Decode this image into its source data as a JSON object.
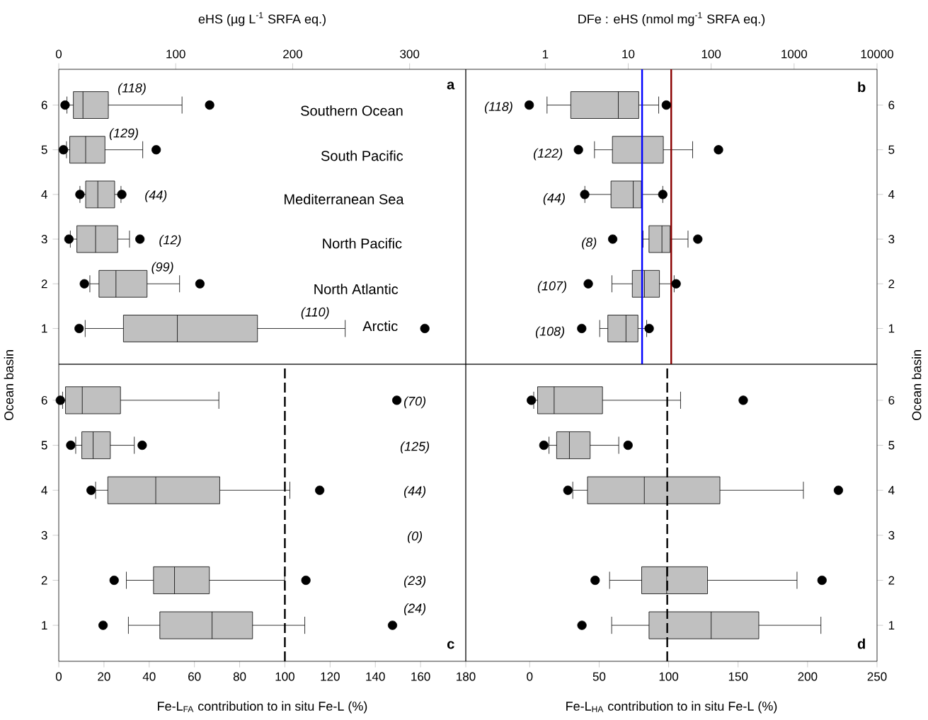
{
  "chart_data": [
    {
      "type": "box",
      "orientation": "horizontal",
      "xlabel": "eHS (µg L$^{-1}$ SRFA eq.)",
      "xlim": [
        0,
        348
      ],
      "xticks": [
        0,
        100,
        200,
        300
      ],
      "categories": [
        "6",
        "5",
        "4",
        "3",
        "2",
        "1"
      ],
      "series": [
        {
          "color": "#c0c0c0",
          "marker": "circle",
          "boxes": [
            {
              "low": 7,
              "q1": 12.5,
              "median": 20.7,
              "q3": 42.4,
              "high": 105.4,
              "outliers": [
                5.4,
                129
              ]
            },
            {
              "low": 6.6,
              "q1": 9.4,
              "median": 23,
              "q3": 39.5,
              "high": 71.8,
              "outliers": [
                4,
                83.3
              ]
            },
            {
              "low": 18.1,
              "q1": 23,
              "median": 33.4,
              "q3": 47.8,
              "high": 53.2,
              "outliers": [
                18.1,
                53.9
              ]
            },
            {
              "low": 9.9,
              "q1": 15.5,
              "median": 31.5,
              "q3": 50.4,
              "high": 60.5,
              "outliers": [
                8.7,
                69.4
              ]
            },
            {
              "low": 26.6,
              "q1": 34.4,
              "median": 48.9,
              "q3": 75.5,
              "high": 103.3,
              "outliers": [
                21.9,
                120.7
              ]
            },
            {
              "low": 22.6,
              "q1": 55.3,
              "median": 101.4,
              "q3": 169.9,
              "high": 244.9,
              "outliers": [
                17.4,
                313
              ]
            }
          ]
        }
      ],
      "annotations": [
        "**a**",
        "(118)",
        "(129)",
        "(44)",
        "(12)",
        "(99)",
        "(110)",
        "Southern Ocean",
        "South Pacific",
        "Mediterranean Sea",
        "North Pacific",
        "North Atlantic",
        "Arctic"
      ]
    },
    {
      "type": "box",
      "orientation": "horizontal",
      "log": "x",
      "xlabel": "DFe : eHS (nmol mg$^{-1}$ SRFA eq.)",
      "xlim": [
        0.11,
        10000
      ],
      "xticks": [
        1,
        10,
        100,
        1000,
        10000
      ],
      "categories": [
        "6",
        "5",
        "4",
        "3",
        "2",
        "1"
      ],
      "series": [
        {
          "color": "#c0c0c0",
          "marker": "circle",
          "boxes": [
            {
              "low": 1.05,
              "q1": 2.03,
              "median": 7.6,
              "q3": 13.4,
              "high": 23.3,
              "outliers": [
                0.64,
                28.8
              ]
            },
            {
              "low": 3.92,
              "q1": 6.45,
              "median": 14.7,
              "q3": 26.5,
              "high": 59.8,
              "outliers": [
                2.51,
                122.6
              ]
            },
            {
              "low": 3,
              "q1": 6.2,
              "median": 11.5,
              "q3": 14.4,
              "high": 26.1,
              "outliers": [
                2.99,
                26.1
              ]
            },
            {
              "low": 15.1,
              "q1": 17.8,
              "median": 25.5,
              "q3": 32,
              "high": 52.6,
              "outliers": [
                6.5,
                69
              ]
            },
            {
              "low": 6.36,
              "q1": 11.2,
              "median": 15.7,
              "q3": 23.8,
              "high": 35.8,
              "outliers": [
                3.3,
                37.8
              ]
            },
            {
              "low": 4.53,
              "q1": 5.68,
              "median": 9.4,
              "q3": 13.1,
              "high": 16.7,
              "outliers": [
                2.75,
                17.9
              ]
            }
          ]
        }
      ],
      "ref_lines": [
        {
          "axis": "x",
          "value": 14.7,
          "color": "#0000ff"
        },
        {
          "axis": "x",
          "value": 33,
          "color": "#8b0000"
        }
      ],
      "annotations": [
        "**b**",
        "(118)",
        "(122)",
        "(44)",
        "(8)",
        "(107)",
        "(108)"
      ]
    },
    {
      "type": "box",
      "orientation": "horizontal",
      "xlabel": "Fe-L$_{FA}$ contribution to in situ Fe-L (%)",
      "ylabel": "Ocean basin",
      "xlim": [
        0,
        180
      ],
      "xticks": [
        0,
        20,
        40,
        60,
        80,
        100,
        120,
        140,
        160,
        180
      ],
      "categories": [
        "6",
        "5",
        "4",
        "3",
        "2",
        "1"
      ],
      "series": [
        {
          "color": "#c0c0c0",
          "marker": "circle",
          "boxes": [
            {
              "low": 1.7,
              "q1": 3,
              "median": 10.4,
              "q3": 27.3,
              "high": 70.8,
              "outliers": [
                0.7,
                149.5
              ]
            },
            {
              "low": 7.5,
              "q1": 10.2,
              "median": 15.2,
              "q3": 22.8,
              "high": 33.4,
              "outliers": [
                5.3,
                36.9
              ]
            },
            {
              "low": 16.3,
              "q1": 21.7,
              "median": 42.9,
              "q3": 71.2,
              "high": 102.2,
              "outliers": [
                14.3,
                115.4
              ]
            },
            null,
            {
              "low": 29.9,
              "q1": 41.9,
              "median": 51.2,
              "q3": 66.6,
              "high": 99.9,
              "outliers": [
                24.5,
                109.3
              ]
            },
            {
              "low": 30.8,
              "q1": 44.7,
              "median": 67.8,
              "q3": 85.7,
              "high": 108.8,
              "outliers": [
                19.6,
                147.6
              ]
            }
          ]
        }
      ],
      "ref_lines": [
        {
          "axis": "x",
          "value": 100,
          "color": "#000000",
          "line_style": "dashed"
        }
      ],
      "annotations": [
        "**c**",
        "(70)",
        "(125)",
        "(44)",
        "(0)",
        "(23)",
        "(24)"
      ]
    },
    {
      "type": "box",
      "orientation": "horizontal",
      "xlabel": "Fe-L$_{HA}$ contribution to in situ Fe-L (%)",
      "ylabel": "Ocean basin",
      "xlim": [
        -46,
        250
      ],
      "xticks": [
        0,
        50,
        100,
        150,
        200,
        250
      ],
      "categories": [
        "6",
        "5",
        "4",
        "3",
        "2",
        "1"
      ],
      "series": [
        {
          "color": "#c0c0c0",
          "marker": "circle",
          "boxes": [
            {
              "low": 2.9,
              "q1": 5.7,
              "median": 17.6,
              "q3": 52.4,
              "high": 108.6,
              "outliers": [
                1.2,
                153.7
              ]
            },
            {
              "low": 13.9,
              "q1": 19.4,
              "median": 28.6,
              "q3": 43.5,
              "high": 64.1,
              "outliers": [
                10.2,
                70.8
              ]
            },
            {
              "low": 31,
              "q1": 41.6,
              "median": 82.5,
              "q3": 136.9,
              "high": 197,
              "outliers": [
                27.5,
                222.2
              ]
            },
            null,
            {
              "low": 57.5,
              "q1": 80.6,
              "median": 98.6,
              "q3": 128,
              "high": 192.4,
              "outliers": [
                47.1,
                210.4
              ]
            },
            {
              "low": 59,
              "q1": 85.9,
              "median": 130.6,
              "q3": 164.9,
              "high": 209.6,
              "outliers": [
                37.6
              ]
            }
          ]
        }
      ],
      "ref_lines": [
        {
          "axis": "x",
          "value": 99,
          "color": "#000000",
          "line_style": "dashed"
        }
      ],
      "annotations": [
        "**d**"
      ]
    }
  ]
}
